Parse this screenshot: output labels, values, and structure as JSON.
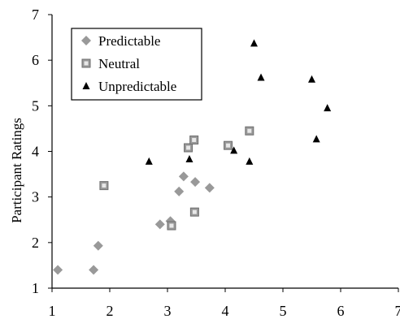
{
  "chart_data": {
    "type": "scatter",
    "xlabel": "",
    "ylabel": "Participant Ratings",
    "xlim": [
      1,
      7
    ],
    "ylim": [
      1,
      7
    ],
    "x_ticks": [
      "1",
      "2",
      "3",
      "4",
      "5",
      "6",
      "7"
    ],
    "y_ticks": [
      "1",
      "2",
      "3",
      "4",
      "5",
      "6",
      "7"
    ],
    "grid": false,
    "legend_position": "top-left",
    "series": [
      {
        "name": "Predictable",
        "marker": "diamond",
        "color": "#999999",
        "points": [
          {
            "x": 1.1,
            "y": 1.4
          },
          {
            "x": 1.72,
            "y": 1.4
          },
          {
            "x": 1.8,
            "y": 1.93
          },
          {
            "x": 2.87,
            "y": 2.4
          },
          {
            "x": 3.05,
            "y": 2.47
          },
          {
            "x": 3.2,
            "y": 3.12
          },
          {
            "x": 3.28,
            "y": 3.45
          },
          {
            "x": 3.48,
            "y": 3.33
          },
          {
            "x": 3.73,
            "y": 3.2
          }
        ]
      },
      {
        "name": "Neutral",
        "marker": "square",
        "color": "#999999",
        "points": [
          {
            "x": 1.9,
            "y": 3.25
          },
          {
            "x": 3.07,
            "y": 2.37
          },
          {
            "x": 3.36,
            "y": 4.08
          },
          {
            "x": 3.46,
            "y": 4.25
          },
          {
            "x": 3.47,
            "y": 2.67
          },
          {
            "x": 4.05,
            "y": 4.13
          },
          {
            "x": 4.42,
            "y": 4.45
          }
        ]
      },
      {
        "name": "Unpredictable",
        "marker": "triangle",
        "color": "#000000",
        "points": [
          {
            "x": 2.68,
            "y": 3.78
          },
          {
            "x": 3.38,
            "y": 3.83
          },
          {
            "x": 4.15,
            "y": 4.02
          },
          {
            "x": 4.42,
            "y": 3.78
          },
          {
            "x": 4.5,
            "y": 6.37
          },
          {
            "x": 4.62,
            "y": 5.62
          },
          {
            "x": 5.5,
            "y": 5.58
          },
          {
            "x": 5.58,
            "y": 4.27
          },
          {
            "x": 5.77,
            "y": 4.95
          }
        ]
      }
    ]
  }
}
